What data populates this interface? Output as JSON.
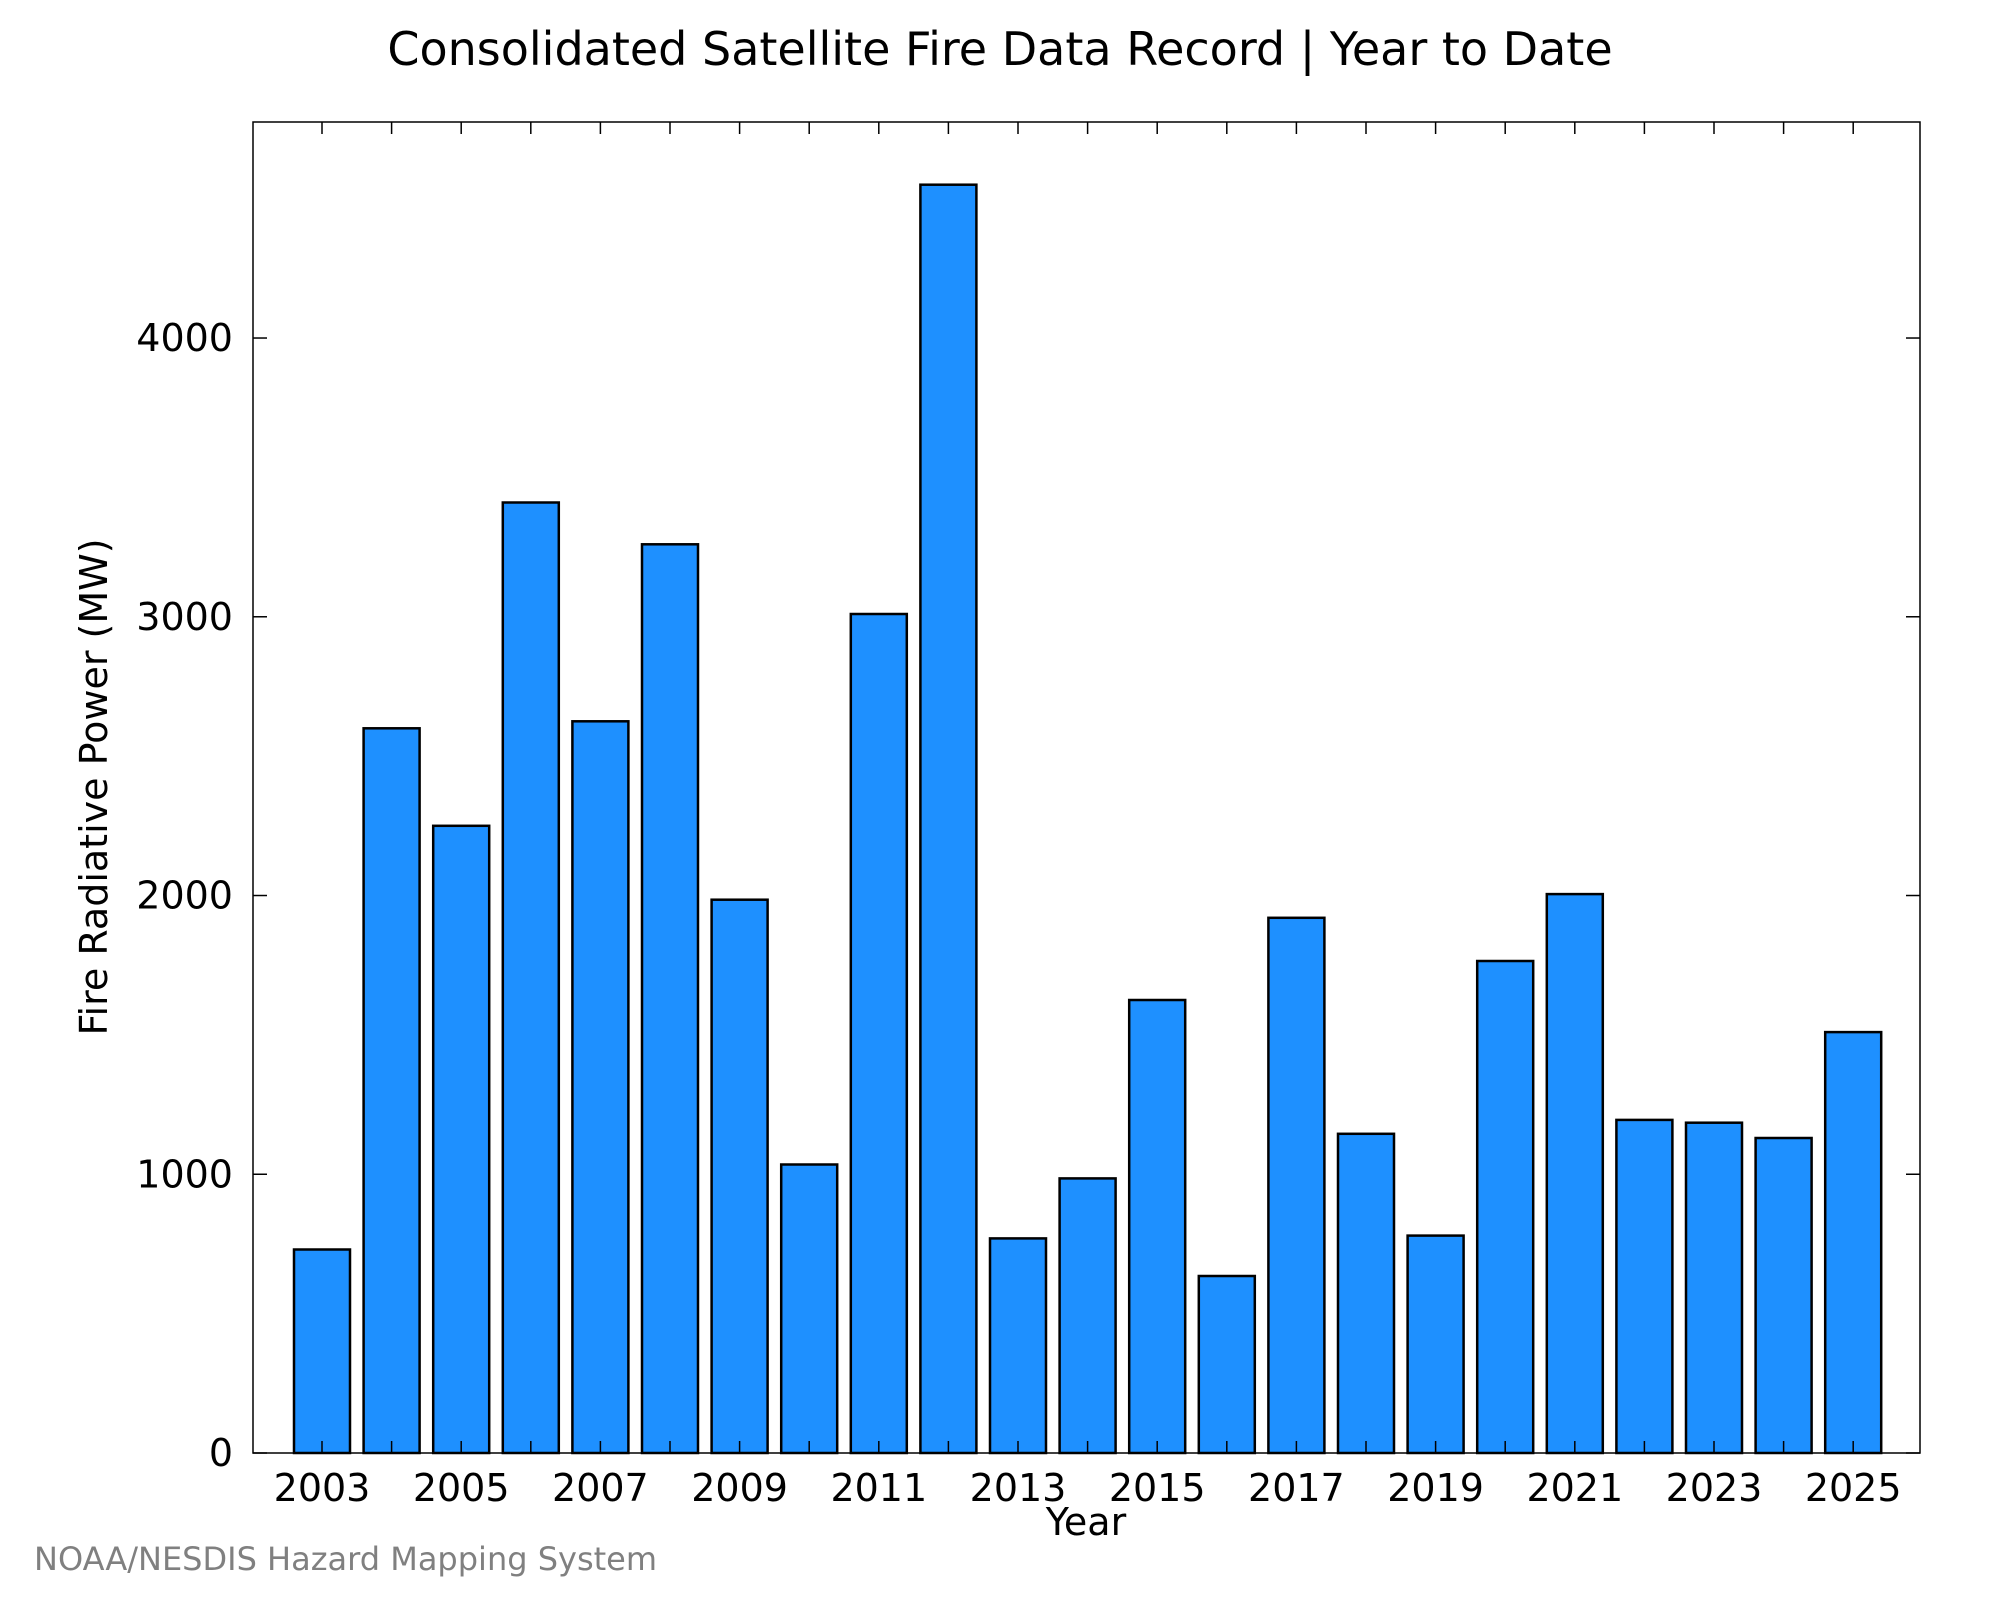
{
  "chart_data": {
    "type": "bar",
    "title": "Consolidated Satellite Fire Data Record | Year to Date",
    "xlabel": "Year",
    "ylabel": "Fire Radiative Power (MW)",
    "credit": "NOAA/NESDIS Hazard Mapping System",
    "categories": [
      "2003",
      "2004",
      "2005",
      "2006",
      "2007",
      "2008",
      "2009",
      "2010",
      "2011",
      "2012",
      "2013",
      "2014",
      "2015",
      "2016",
      "2017",
      "2018",
      "2019",
      "2020",
      "2021",
      "2022",
      "2023",
      "2024",
      "2025"
    ],
    "values": [
      730,
      2600,
      2250,
      3410,
      2625,
      3260,
      1985,
      1035,
      3010,
      4550,
      770,
      985,
      1625,
      635,
      1920,
      1145,
      780,
      1765,
      2005,
      1195,
      1185,
      1130,
      1510
    ],
    "ylim": [
      0,
      4775
    ],
    "yticks": [
      "0",
      "1000",
      "2000",
      "3000",
      "4000"
    ],
    "xtick_labels": [
      "2003",
      "2005",
      "2007",
      "2009",
      "2011",
      "2013",
      "2015",
      "2017",
      "2019",
      "2021",
      "2023",
      "2025"
    ],
    "bar_color": "#1e90ff",
    "grid": false,
    "legend": "none"
  }
}
